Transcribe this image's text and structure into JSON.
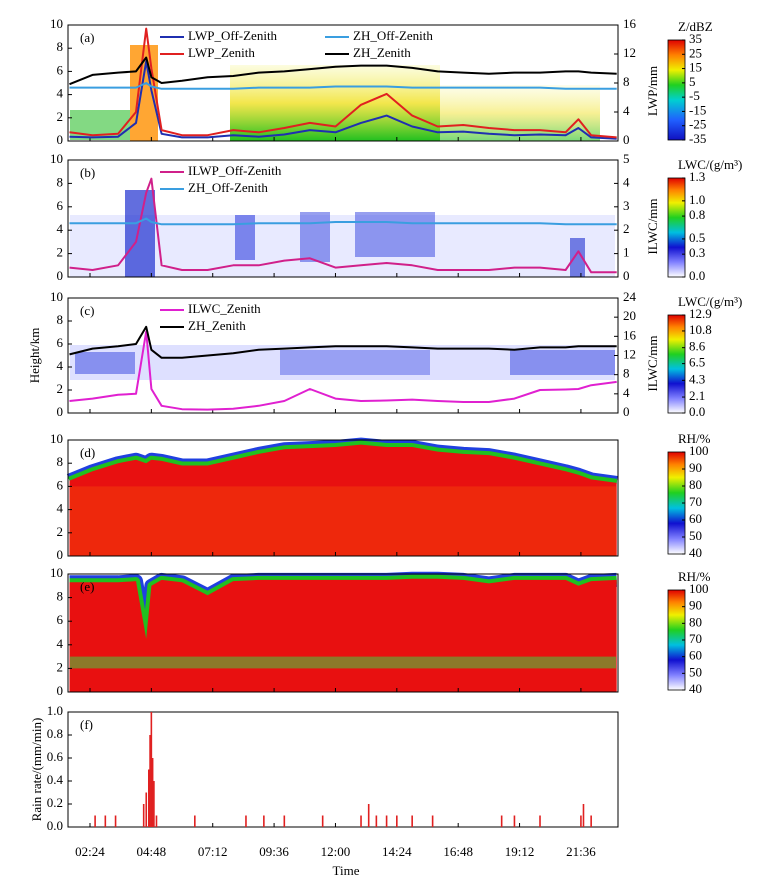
{
  "chart_data": [
    {
      "type": "line",
      "label": "(a)",
      "right_label": "LWP/mm",
      "x": [
        1.6,
        2.5,
        3.5,
        4.2,
        4.6,
        4.8,
        5.2,
        6,
        7,
        8,
        9,
        10,
        11,
        12,
        13,
        14,
        15,
        16,
        17,
        18,
        19,
        20,
        21,
        21.5,
        22,
        23
      ],
      "ylim": [
        0,
        10
      ],
      "yticks": [
        0,
        2,
        4,
        6,
        8,
        10
      ],
      "y2lim": [
        0,
        16
      ],
      "y2ticks": [
        0,
        4,
        8,
        12,
        16
      ],
      "series": [
        {
          "name": "LWP_Off-Zenith",
          "color": "#1f2fb0",
          "axis": "y2",
          "values": [
            0.6,
            0.5,
            0.6,
            2.5,
            11,
            7,
            1,
            0.5,
            0.5,
            0.8,
            0.6,
            0.9,
            1.5,
            1.2,
            2.5,
            3.5,
            2,
            1.2,
            1.3,
            1,
            0.8,
            0.9,
            0.8,
            1.8,
            0.5,
            0.3
          ]
        },
        {
          "name": "LWP_Zenith",
          "color": "#e02020",
          "axis": "y2",
          "values": [
            1.2,
            0.8,
            1.0,
            4,
            15.5,
            10,
            1.5,
            0.8,
            0.8,
            1.5,
            1.2,
            1.8,
            2.5,
            2,
            5,
            6.5,
            3.5,
            2,
            2.2,
            1.8,
            1.5,
            1.5,
            1.2,
            3,
            0.8,
            0.5
          ]
        },
        {
          "name": "ZH_Off-Zenith",
          "color": "#3a9ee0",
          "values": [
            4.6,
            4.6,
            4.6,
            4.6,
            5.0,
            4.7,
            4.5,
            4.5,
            4.5,
            4.5,
            4.6,
            4.6,
            4.6,
            4.7,
            4.7,
            4.7,
            4.6,
            4.6,
            4.6,
            4.6,
            4.6,
            4.6,
            4.5,
            4.5,
            4.5,
            4.5
          ]
        },
        {
          "name": "ZH_Zenith",
          "color": "#000000",
          "values": [
            4.9,
            5.7,
            5.9,
            6.0,
            7.2,
            5.5,
            5.0,
            5.2,
            5.5,
            5.6,
            5.9,
            6.0,
            6.2,
            6.4,
            6.5,
            6.5,
            6.3,
            6.0,
            5.9,
            5.8,
            5.9,
            5.9,
            6.0,
            6.0,
            5.9,
            5.8
          ]
        }
      ],
      "colorbar": {
        "title": "Z/dBZ",
        "ticks": [
          35,
          25,
          15,
          5,
          -5,
          -15,
          -25,
          -35
        ]
      }
    },
    {
      "type": "line",
      "label": "(b)",
      "right_label": "ILWC/mm",
      "x": [
        1.6,
        2.5,
        3.5,
        4.2,
        4.6,
        4.8,
        5.2,
        6,
        7,
        8,
        9,
        10,
        11,
        12,
        13,
        14,
        15,
        16,
        17,
        18,
        19,
        20,
        21,
        21.5,
        22,
        23
      ],
      "ylim": [
        0,
        10
      ],
      "yticks": [
        0,
        2,
        4,
        6,
        8,
        10
      ],
      "y2lim": [
        0,
        5
      ],
      "y2ticks": [
        0,
        1,
        2,
        3,
        4,
        5
      ],
      "series": [
        {
          "name": "ILWP_Off-Zenith",
          "color": "#d0208a",
          "axis": "y2",
          "values": [
            0.4,
            0.3,
            0.5,
            1.5,
            3.6,
            4.2,
            0.5,
            0.3,
            0.3,
            0.5,
            0.5,
            0.7,
            0.8,
            0.4,
            0.5,
            0.6,
            0.5,
            0.3,
            0.3,
            0.3,
            0.4,
            0.4,
            0.3,
            1.1,
            0.2,
            0.2
          ]
        },
        {
          "name": "ZH_Off-Zenith",
          "color": "#3a9ee0",
          "values": [
            4.6,
            4.6,
            4.6,
            4.6,
            5.0,
            4.7,
            4.5,
            4.5,
            4.5,
            4.5,
            4.6,
            4.6,
            4.6,
            4.7,
            4.7,
            4.7,
            4.6,
            4.6,
            4.6,
            4.6,
            4.6,
            4.6,
            4.5,
            4.5,
            4.5,
            4.5
          ]
        }
      ],
      "colorbar": {
        "title": "LWC/(g/m³)",
        "ticks": [
          1.3,
          {
            "value": 1,
            "label": "1.0"
          },
          0.8,
          0.5,
          0.3,
          {
            "value": 0,
            "label": "0.0"
          }
        ]
      }
    },
    {
      "type": "line",
      "label": "(c)",
      "y_label": "Height/km",
      "right_label": "ILWC/mm",
      "x": [
        1.6,
        2.5,
        3.5,
        4.2,
        4.6,
        4.8,
        5.2,
        6,
        7,
        8,
        9,
        10,
        11,
        12,
        13,
        14,
        15,
        16,
        17,
        18,
        19,
        20,
        21,
        21.5,
        22,
        23
      ],
      "ylim": [
        0,
        10
      ],
      "yticks": [
        0,
        2,
        4,
        6,
        8,
        10
      ],
      "y2lim": [
        0,
        24
      ],
      "y2ticks": [
        0,
        4,
        8,
        12,
        16,
        20,
        24
      ],
      "series": [
        {
          "name": "ILWC_Zenith",
          "color": "#e020d0",
          "axis": "y2",
          "values": [
            2.5,
            3.0,
            3.8,
            4.0,
            17,
            5,
            1.5,
            0.8,
            0.7,
            0.9,
            1.5,
            2.5,
            5.0,
            3.0,
            2.5,
            2.6,
            2.8,
            2.5,
            2.3,
            2.3,
            3.0,
            4.8,
            4.9,
            5.0,
            5.8,
            6.5
          ]
        },
        {
          "name": "ZH_Zenith",
          "color": "#000000",
          "values": [
            5.1,
            5.6,
            5.8,
            6.0,
            7.5,
            5.5,
            4.8,
            4.8,
            5.0,
            5.2,
            5.5,
            5.6,
            5.7,
            5.8,
            5.8,
            5.8,
            5.7,
            5.6,
            5.6,
            5.6,
            5.5,
            5.7,
            5.7,
            5.8,
            5.8,
            5.8
          ]
        }
      ],
      "colorbar": {
        "title": "LWC/(g/m³)",
        "ticks": [
          12.9,
          10.8,
          8.6,
          6.5,
          4.3,
          2.1,
          {
            "value": 0,
            "label": "0.0"
          }
        ]
      }
    },
    {
      "type": "heatmap",
      "label": "(d)",
      "x": [
        1.6,
        2.5,
        3.5,
        4.2,
        4.6,
        4.8,
        5.2,
        6,
        7,
        8,
        9,
        10,
        11,
        12,
        13,
        14,
        15,
        16,
        17,
        18,
        19,
        20,
        21,
        21.5,
        22,
        23
      ],
      "values": [
        6.5,
        7.3,
        8.0,
        8.3,
        8.0,
        8.3,
        8.2,
        7.8,
        7.8,
        8.3,
        8.8,
        9.2,
        9.3,
        9.4,
        9.6,
        9.4,
        9.4,
        9.0,
        8.8,
        8.7,
        8.3,
        7.8,
        7.3,
        7.0,
        6.6,
        6.3
      ],
      "ylim": [
        0,
        10
      ],
      "yticks": [
        0,
        2,
        4,
        6,
        8,
        10
      ],
      "colorbar": {
        "title": "RH/%",
        "ticks": [
          100,
          90,
          80,
          70,
          60,
          50,
          40
        ]
      }
    },
    {
      "type": "heatmap",
      "label": "(e)",
      "x": [
        1.6,
        2.5,
        3.5,
        4.2,
        4.6,
        4.8,
        5.2,
        6,
        7,
        8,
        9,
        10,
        11,
        12,
        13,
        14,
        15,
        16,
        17,
        18,
        19,
        20,
        21,
        21.5,
        22,
        23
      ],
      "values": [
        9.3,
        9.3,
        9.3,
        9.4,
        4.5,
        9.0,
        9.5,
        9.3,
        8.2,
        9.4,
        9.5,
        9.5,
        9.5,
        9.5,
        9.5,
        9.5,
        9.6,
        9.6,
        9.5,
        9.2,
        9.5,
        9.5,
        9.5,
        9.0,
        9.4,
        9.5
      ],
      "ylim": [
        0,
        10
      ],
      "yticks": [
        0,
        2,
        4,
        6,
        8,
        10
      ],
      "colorbar": {
        "title": "RH/%",
        "ticks": [
          100,
          90,
          80,
          70,
          60,
          50,
          40
        ]
      }
    },
    {
      "type": "bar",
      "label": "(f)",
      "y_label": "Rain rate/(mm/min)",
      "x_label": "Time",
      "x": [
        2.6,
        3.0,
        3.4,
        4.5,
        4.6,
        4.7,
        4.75,
        4.8,
        4.85,
        4.9,
        5.0,
        6.5,
        8.5,
        9.2,
        10.0,
        11.5,
        13.0,
        13.3,
        13.6,
        14.0,
        14.4,
        15.0,
        15.8,
        18.5,
        19.0,
        20.0,
        21.6,
        21.7,
        22.0
      ],
      "values": [
        0.1,
        0.1,
        0.1,
        0.2,
        0.3,
        0.5,
        0.8,
        1.0,
        0.6,
        0.4,
        0.1,
        0.1,
        0.1,
        0.1,
        0.1,
        0.1,
        0.1,
        0.2,
        0.1,
        0.1,
        0.1,
        0.1,
        0.1,
        0.1,
        0.1,
        0.1,
        0.1,
        0.2,
        0.1
      ],
      "color": "#e02020",
      "ylim": [
        0,
        1
      ],
      "yticks": [
        {
          "value": 0,
          "label": "0.0"
        },
        0.2,
        0.4,
        0.6,
        0.8,
        {
          "value": 1,
          "label": "1.0"
        }
      ],
      "xlim": [
        1.54,
        23.05
      ],
      "xticks": [
        {
          "value": 2.4,
          "label": "02:24"
        },
        {
          "value": 4.8,
          "label": "04:48"
        },
        {
          "value": 7.2,
          "label": "07:12"
        },
        {
          "value": 9.6,
          "label": "09:36"
        },
        {
          "value": 12,
          "label": "12:00"
        },
        {
          "value": 14.4,
          "label": "14:24"
        },
        {
          "value": 16.8,
          "label": "16:48"
        },
        {
          "value": 19.2,
          "label": "19:12"
        },
        {
          "value": 21.6,
          "label": "21:36"
        }
      ]
    }
  ]
}
